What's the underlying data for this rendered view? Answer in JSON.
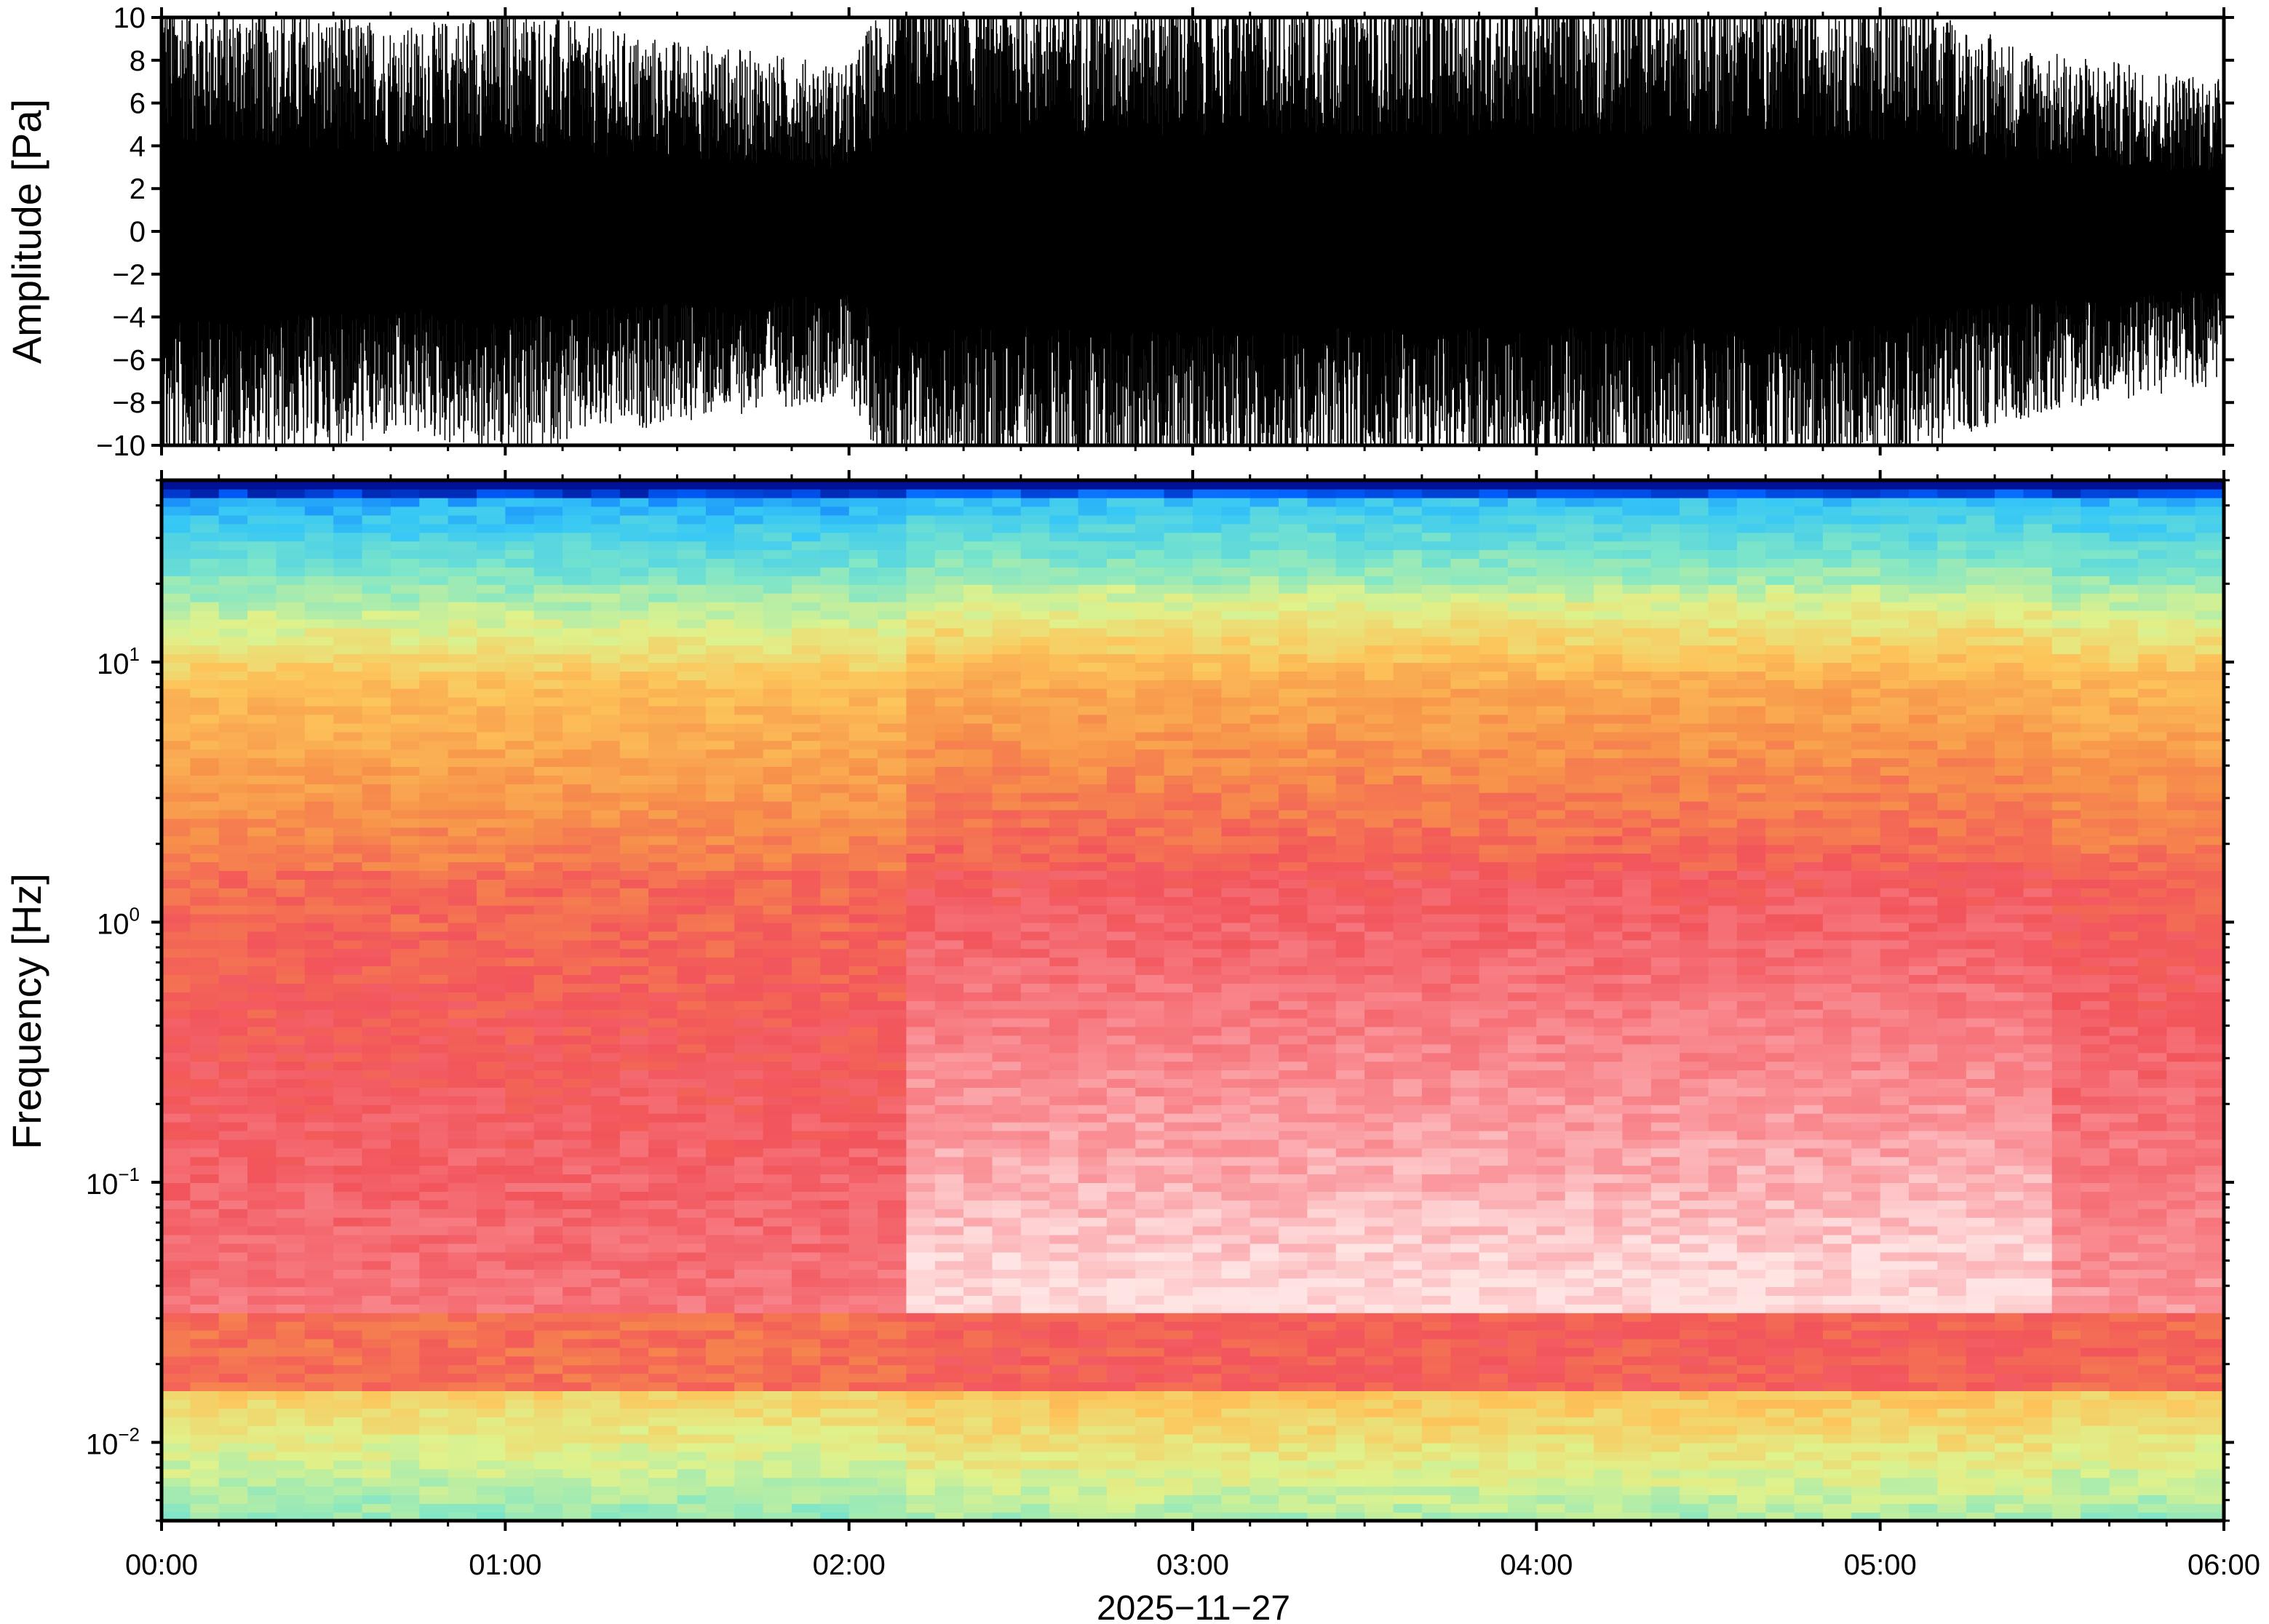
{
  "chart_data": [
    {
      "type": "line",
      "ylabel": "Amplitude [Pa]",
      "ylim": [
        -10,
        10
      ],
      "yticks": [
        "10",
        "8",
        "6",
        "4",
        "2",
        "0",
        "−2",
        "−4",
        "−6",
        "−8",
        "−10"
      ],
      "ytick_values": [
        10,
        8,
        6,
        4,
        2,
        0,
        -2,
        -4,
        -6,
        -8,
        -10
      ],
      "xlim": [
        "00:00",
        "06:00"
      ],
      "color": "#000000",
      "series": [
        {
          "x": [
            "00:00",
            "00:15",
            "00:30",
            "00:45",
            "01:00",
            "01:15",
            "01:30",
            "01:45",
            "02:00",
            "02:08",
            "02:15",
            "02:30",
            "02:45",
            "03:00",
            "03:15",
            "03:30",
            "03:45",
            "04:00",
            "04:15",
            "04:30",
            "04:45",
            "05:00",
            "05:15",
            "05:30",
            "05:45",
            "06:00"
          ],
          "envelope": [
            9.5,
            9.0,
            8.5,
            8.0,
            9.0,
            8.0,
            7.5,
            7.0,
            6.5,
            10.0,
            10.0,
            10.0,
            10.0,
            10.0,
            10.0,
            10.0,
            10.0,
            10.0,
            10.0,
            10.0,
            10.0,
            9.5,
            8.0,
            7.0,
            6.5,
            6.0
          ]
        }
      ]
    },
    {
      "type": "heatmap",
      "ylabel": "Frequency [Hz]",
      "yscale": "log",
      "ylim": [
        0.005,
        50
      ],
      "yticks": [
        {
          "value": 10,
          "base": "10",
          "exp": "1"
        },
        {
          "value": 1,
          "base": "10",
          "exp": "0"
        },
        {
          "value": 0.1,
          "base": "10",
          "exp": "−1"
        },
        {
          "value": 0.01,
          "base": "10",
          "exp": "−2"
        }
      ],
      "xticks": [
        "00:00",
        "01:00",
        "02:00",
        "03:00",
        "04:00",
        "05:00",
        "06:00"
      ],
      "xlim": [
        "00:00",
        "06:00"
      ],
      "xlabel": "2025−11−27",
      "colormap": [
        "#00007f",
        "#0060ff",
        "#37c8f5",
        "#7fe6c8",
        "#dff28c",
        "#fdc45a",
        "#f7934a",
        "#f2545b",
        "#f98e94",
        "#ffe4e4"
      ]
    }
  ],
  "figure": {
    "xlabel": "2025−11−27",
    "xticks": [
      "00:00",
      "01:00",
      "02:00",
      "03:00",
      "04:00",
      "05:00",
      "06:00"
    ]
  }
}
